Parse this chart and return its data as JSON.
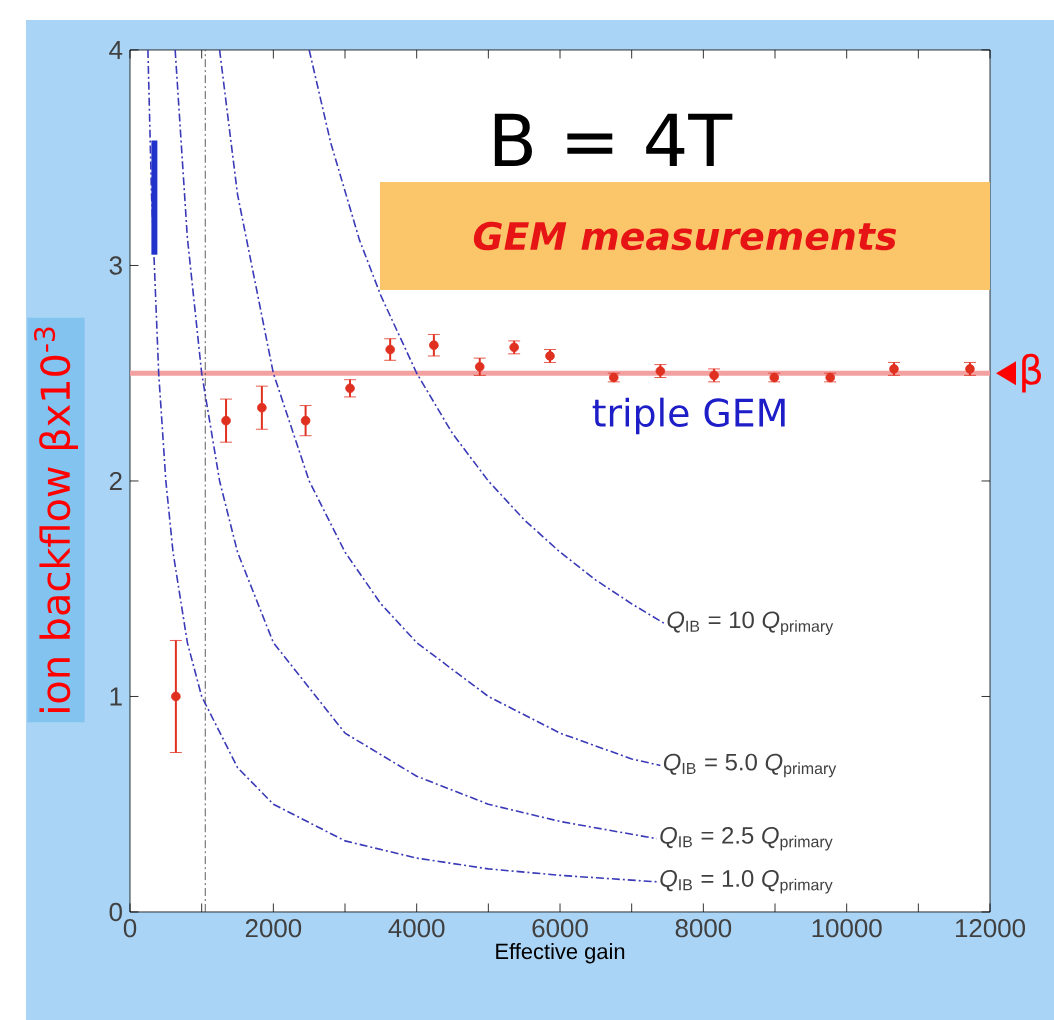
{
  "chart_data": {
    "type": "line",
    "xlabel": "Effective gain",
    "ylabel": "ion backflow βx10$^{-3}$",
    "xlim": [
      0,
      12000
    ],
    "ylim": [
      0,
      4
    ],
    "xticks": [
      0,
      {
        "value": 1000,
        "label": null
      },
      2000,
      {
        "value": 3000,
        "label": null
      },
      4000,
      {
        "value": 5000,
        "label": null
      },
      6000,
      {
        "value": 7000,
        "label": null
      },
      8000,
      {
        "value": 9000,
        "label": null
      },
      10000,
      {
        "value": 11000,
        "label": null
      },
      12000
    ],
    "yticks": [
      0,
      1,
      2,
      3,
      4
    ],
    "line_style": "dashed",
    "annotations": [
      "B = 4T",
      "GEM measurements",
      "triple GEM"
    ],
    "ref_lines": [
      {
        "axis": "y",
        "value": 2.5,
        "label": "β",
        "color": "#f2a0a0"
      },
      {
        "axis": "x",
        "value": 1050,
        "color": "#333333",
        "line_style": "dashed"
      }
    ],
    "series": [
      {
        "name": "*Q*$_{IB}$ = 10 *Q*$_{primary}$",
        "color": "#3a3ab8",
        "x": [
          2500,
          2800,
          3200,
          3500,
          4000,
          4500,
          5000,
          5500,
          6000,
          6500,
          7000,
          7450
        ],
        "values": [
          4.0,
          3.57,
          3.12,
          2.86,
          2.5,
          2.22,
          2.0,
          1.82,
          1.67,
          1.54,
          1.43,
          1.34
        ]
      },
      {
        "name": "*Q*$_{IB}$ = 5.0 *Q*$_{primary}$",
        "color": "#3a3ab8",
        "x": [
          1250,
          1500,
          2000,
          2500,
          3000,
          3500,
          4000,
          5000,
          6000,
          7000,
          7400
        ],
        "values": [
          4.0,
          3.33,
          2.5,
          2.0,
          1.67,
          1.43,
          1.25,
          1.0,
          0.83,
          0.71,
          0.68
        ]
      },
      {
        "name": "*Q*$_{IB}$ = 2.5 *Q*$_{primary}$",
        "color": "#3a3ab8",
        "x": [
          630,
          800,
          1000,
          1250,
          1500,
          2000,
          3000,
          4000,
          5000,
          6000,
          7350
        ],
        "values": [
          4.0,
          3.13,
          2.5,
          2.0,
          1.67,
          1.25,
          0.83,
          0.63,
          0.5,
          0.42,
          0.34
        ]
      },
      {
        "name": "*Q*$_{IB}$ = 1.0 *Q*$_{primary}$",
        "color": "#3a3ab8",
        "x": [
          250,
          300,
          400,
          500,
          600,
          800,
          1000,
          1500,
          2000,
          3000,
          4000,
          5000,
          6000,
          7350
        ],
        "values": [
          4.0,
          3.33,
          2.5,
          2.0,
          1.67,
          1.25,
          1.0,
          0.67,
          0.5,
          0.33,
          0.25,
          0.2,
          0.17,
          0.14
        ]
      },
      {
        "type": "scatter",
        "color": "#e03020",
        "marker": "circle",
        "x": [
          640,
          1340,
          1840,
          2450,
          3070,
          3630,
          4240,
          4880,
          5360,
          5860,
          6750,
          7400,
          8150,
          8990,
          9770,
          10660,
          11720
        ],
        "values": [
          1.0,
          2.28,
          2.34,
          2.28,
          2.43,
          2.61,
          2.63,
          2.53,
          2.62,
          2.58,
          2.48,
          2.51,
          2.49,
          2.48,
          2.48,
          2.52,
          2.52
        ],
        "errors": [
          0.26,
          0.1,
          0.1,
          0.07,
          0.04,
          0.05,
          0.05,
          0.04,
          0.03,
          0.03,
          0.02,
          0.03,
          0.03,
          0.02,
          0.02,
          0.03,
          0.03
        ]
      },
      {
        "type": "line",
        "color": "#2233cc",
        "line_style": "solid",
        "x": [
          340,
          340
        ],
        "values": [
          3.05,
          3.58
        ]
      }
    ]
  }
}
